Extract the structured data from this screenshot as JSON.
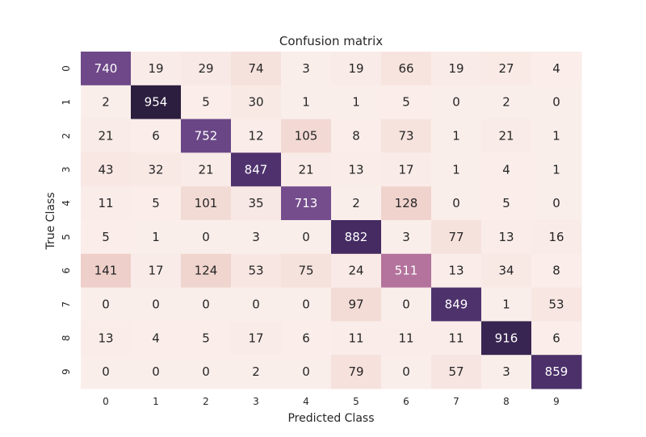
{
  "chart_data": {
    "type": "heatmap",
    "title": "Confusion matrix",
    "xlabel": "Predicted Class",
    "ylabel": "True Class",
    "x_categories": [
      "0",
      "1",
      "2",
      "3",
      "4",
      "5",
      "6",
      "7",
      "8",
      "9"
    ],
    "y_categories": [
      "0",
      "1",
      "2",
      "3",
      "4",
      "5",
      "6",
      "7",
      "8",
      "9"
    ],
    "values": [
      [
        740,
        19,
        29,
        74,
        3,
        19,
        66,
        19,
        27,
        4
      ],
      [
        2,
        954,
        5,
        30,
        1,
        1,
        5,
        0,
        2,
        0
      ],
      [
        21,
        6,
        752,
        12,
        105,
        8,
        73,
        1,
        21,
        1
      ],
      [
        43,
        32,
        21,
        847,
        21,
        13,
        17,
        1,
        4,
        1
      ],
      [
        11,
        5,
        101,
        35,
        713,
        2,
        128,
        0,
        5,
        0
      ],
      [
        5,
        1,
        0,
        3,
        0,
        882,
        3,
        77,
        13,
        16
      ],
      [
        141,
        17,
        124,
        53,
        75,
        24,
        511,
        13,
        34,
        8
      ],
      [
        0,
        0,
        0,
        0,
        0,
        97,
        0,
        849,
        1,
        53
      ],
      [
        13,
        4,
        5,
        17,
        6,
        11,
        11,
        11,
        916,
        6
      ],
      [
        0,
        0,
        0,
        2,
        0,
        79,
        0,
        57,
        3,
        859
      ]
    ],
    "colorbar": false,
    "grid": false
  }
}
